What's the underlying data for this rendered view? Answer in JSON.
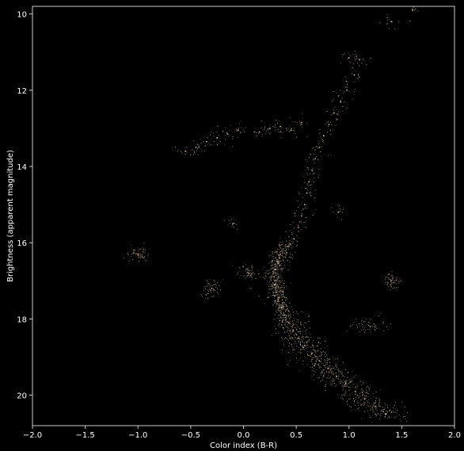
{
  "chart_data": {
    "type": "scatter",
    "title": "",
    "xlabel": "Color index (B-R)",
    "ylabel": "Brightness (apparent magnitude)",
    "xlim": [
      -2.0,
      2.0
    ],
    "ylim": [
      20.8,
      9.8
    ],
    "y_inverted": true,
    "grid": false,
    "legend": "none",
    "xticks": [
      -2.0,
      -1.5,
      -1.0,
      -0.5,
      0.0,
      0.5,
      1.0,
      1.5,
      2.0
    ],
    "xtick_labels": [
      "−2.0",
      "−1.5",
      "−1.0",
      "−0.5",
      "0.0",
      "0.5",
      "1.0",
      "1.5",
      "2.0"
    ],
    "yticks": [
      10,
      12,
      14,
      16,
      18,
      20
    ],
    "ytick_labels": [
      "10",
      "12",
      "14",
      "16",
      "18",
      "20"
    ],
    "colors": {
      "background": "#000000",
      "axes": "#cccccc",
      "text": "#ffffff",
      "points": "#f2d9b8"
    },
    "series": [
      {
        "name": "",
        "description_of_population": [
          "main sequence",
          "turnoff",
          "subgiant branch",
          "red giant branch",
          "horizontal branch"
        ],
        "points": [
          [
            0.35,
            16.3
          ],
          [
            0.32,
            16.5
          ],
          [
            0.3,
            16.7
          ],
          [
            0.29,
            16.9
          ],
          [
            0.3,
            17.1
          ],
          [
            0.31,
            17.3
          ],
          [
            0.33,
            17.5
          ],
          [
            0.36,
            17.7
          ],
          [
            0.39,
            17.9
          ],
          [
            0.43,
            18.1
          ],
          [
            0.47,
            18.3
          ],
          [
            0.52,
            18.5
          ],
          [
            0.58,
            18.7
          ],
          [
            0.65,
            18.9
          ],
          [
            0.72,
            19.1
          ],
          [
            0.8,
            19.3
          ],
          [
            0.88,
            19.5
          ],
          [
            0.97,
            19.7
          ],
          [
            1.06,
            19.9
          ],
          [
            1.15,
            20.1
          ],
          [
            1.25,
            20.3
          ],
          [
            1.35,
            20.5
          ],
          [
            0.42,
            16.1
          ],
          [
            0.48,
            15.9
          ],
          [
            0.52,
            15.6
          ],
          [
            0.55,
            15.3
          ],
          [
            0.58,
            15.0
          ],
          [
            0.6,
            14.7
          ],
          [
            0.62,
            14.4
          ],
          [
            0.65,
            14.1
          ],
          [
            0.68,
            13.8
          ],
          [
            0.72,
            13.5
          ],
          [
            0.76,
            13.2
          ],
          [
            0.81,
            12.9
          ],
          [
            0.86,
            12.6
          ],
          [
            0.92,
            12.3
          ],
          [
            0.98,
            12.0
          ],
          [
            1.05,
            11.6
          ],
          [
            1.1,
            11.2
          ],
          [
            1.0,
            11.15
          ],
          [
            -0.55,
            13.6
          ],
          [
            -0.45,
            13.5
          ],
          [
            -0.35,
            13.35
          ],
          [
            -0.25,
            13.25
          ],
          [
            -0.15,
            13.15
          ],
          [
            -0.05,
            13.05
          ],
          [
            0.15,
            13.1
          ],
          [
            0.25,
            13.0
          ],
          [
            0.35,
            12.95
          ],
          [
            0.45,
            13.05
          ],
          [
            0.55,
            12.85
          ],
          [
            -0.1,
            15.5
          ],
          [
            0.05,
            16.8
          ],
          [
            -0.3,
            17.2
          ],
          [
            1.4,
            17.0
          ],
          [
            1.2,
            18.2
          ],
          [
            -1.0,
            16.3
          ],
          [
            0.9,
            15.2
          ],
          [
            1.6,
            9.9
          ],
          [
            1.4,
            10.2
          ]
        ]
      }
    ]
  }
}
